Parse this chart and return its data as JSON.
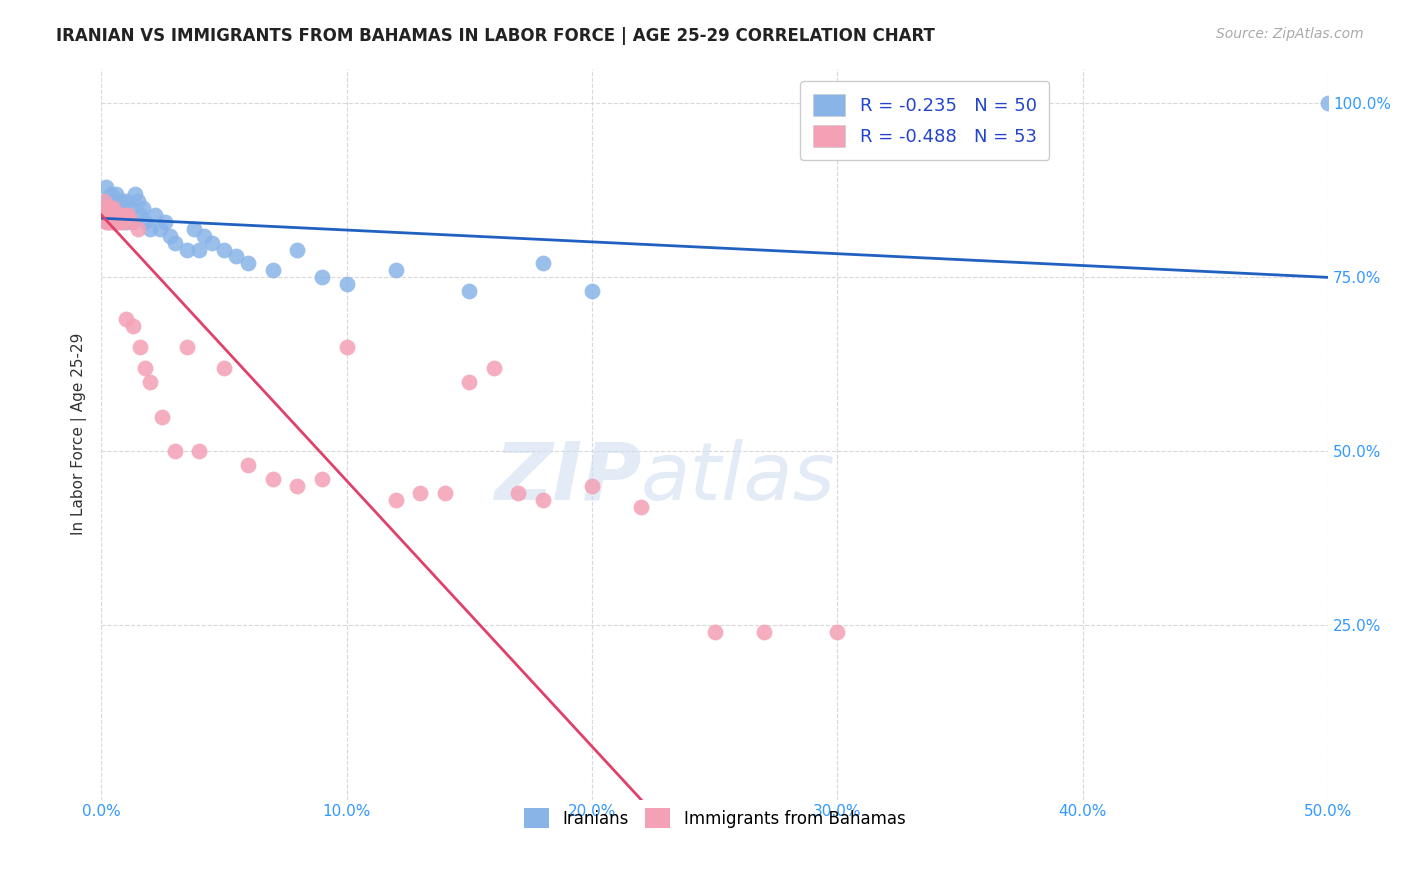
{
  "title": "IRANIAN VS IMMIGRANTS FROM BAHAMAS IN LABOR FORCE | AGE 25-29 CORRELATION CHART",
  "source": "Source: ZipAtlas.com",
  "ylabel": "In Labor Force | Age 25-29",
  "xlim": [
    0.0,
    0.5
  ],
  "ylim": [
    0.0,
    1.05
  ],
  "xtick_labels": [
    "0.0%",
    "",
    "",
    "",
    "",
    "",
    "",
    "",
    "",
    "",
    "10.0%",
    "",
    "",
    "",
    "",
    "",
    "",
    "",
    "",
    "",
    "20.0%",
    "",
    "",
    "",
    "",
    "",
    "",
    "",
    "",
    "",
    "30.0%",
    "",
    "",
    "",
    "",
    "",
    "",
    "",
    "",
    "",
    "40.0%",
    "",
    "",
    "",
    "",
    "",
    "",
    "",
    "",
    "",
    "50.0%"
  ],
  "xtick_values": [
    0.0,
    0.01,
    0.02,
    0.03,
    0.04,
    0.05,
    0.06,
    0.07,
    0.08,
    0.09,
    0.1,
    0.11,
    0.12,
    0.13,
    0.14,
    0.15,
    0.16,
    0.17,
    0.18,
    0.19,
    0.2,
    0.21,
    0.22,
    0.23,
    0.24,
    0.25,
    0.26,
    0.27,
    0.28,
    0.29,
    0.3,
    0.31,
    0.32,
    0.33,
    0.34,
    0.35,
    0.36,
    0.37,
    0.38,
    0.39,
    0.4,
    0.41,
    0.42,
    0.43,
    0.44,
    0.45,
    0.46,
    0.47,
    0.48,
    0.49,
    0.5
  ],
  "ytick_labels": [
    "25.0%",
    "50.0%",
    "75.0%",
    "100.0%"
  ],
  "ytick_values": [
    0.25,
    0.5,
    0.75,
    1.0
  ],
  "blue_color": "#89b4e8",
  "pink_color": "#f4a0b5",
  "blue_line_color": "#2060c0",
  "pink_line_color": "#e0406a",
  "blue_R": -0.235,
  "blue_N": 50,
  "pink_R": -0.488,
  "pink_N": 53,
  "blue_scatter_x": [
    0.001,
    0.002,
    0.002,
    0.003,
    0.003,
    0.003,
    0.004,
    0.004,
    0.005,
    0.005,
    0.006,
    0.006,
    0.007,
    0.007,
    0.008,
    0.008,
    0.009,
    0.01,
    0.01,
    0.011,
    0.012,
    0.013,
    0.014,
    0.015,
    0.016,
    0.017,
    0.018,
    0.02,
    0.022,
    0.024,
    0.026,
    0.028,
    0.03,
    0.035,
    0.038,
    0.04,
    0.042,
    0.045,
    0.05,
    0.055,
    0.06,
    0.07,
    0.08,
    0.09,
    0.1,
    0.12,
    0.15,
    0.18,
    0.2,
    0.5
  ],
  "blue_scatter_y": [
    0.84,
    0.86,
    0.88,
    0.83,
    0.84,
    0.86,
    0.85,
    0.87,
    0.84,
    0.86,
    0.85,
    0.87,
    0.84,
    0.86,
    0.84,
    0.86,
    0.85,
    0.83,
    0.86,
    0.84,
    0.85,
    0.83,
    0.87,
    0.86,
    0.84,
    0.85,
    0.83,
    0.82,
    0.84,
    0.82,
    0.83,
    0.81,
    0.8,
    0.79,
    0.82,
    0.79,
    0.81,
    0.8,
    0.79,
    0.78,
    0.77,
    0.76,
    0.79,
    0.75,
    0.74,
    0.76,
    0.73,
    0.77,
    0.73,
    1.0
  ],
  "pink_scatter_x": [
    0.001,
    0.001,
    0.001,
    0.002,
    0.002,
    0.002,
    0.003,
    0.003,
    0.003,
    0.004,
    0.004,
    0.004,
    0.005,
    0.005,
    0.005,
    0.006,
    0.006,
    0.007,
    0.007,
    0.008,
    0.008,
    0.009,
    0.01,
    0.01,
    0.011,
    0.012,
    0.013,
    0.015,
    0.016,
    0.018,
    0.02,
    0.025,
    0.03,
    0.035,
    0.04,
    0.05,
    0.06,
    0.07,
    0.08,
    0.09,
    0.1,
    0.12,
    0.13,
    0.14,
    0.15,
    0.16,
    0.17,
    0.18,
    0.2,
    0.22,
    0.25,
    0.27,
    0.3
  ],
  "pink_scatter_y": [
    0.84,
    0.85,
    0.86,
    0.83,
    0.84,
    0.85,
    0.83,
    0.84,
    0.85,
    0.83,
    0.84,
    0.85,
    0.83,
    0.84,
    0.85,
    0.83,
    0.84,
    0.83,
    0.84,
    0.83,
    0.84,
    0.83,
    0.84,
    0.69,
    0.84,
    0.83,
    0.68,
    0.82,
    0.65,
    0.62,
    0.6,
    0.55,
    0.5,
    0.65,
    0.5,
    0.62,
    0.48,
    0.46,
    0.45,
    0.46,
    0.65,
    0.43,
    0.44,
    0.44,
    0.6,
    0.62,
    0.44,
    0.43,
    0.45,
    0.42,
    0.24,
    0.24,
    0.24
  ],
  "watermark_zip": "ZIP",
  "watermark_atlas": "atlas",
  "background_color": "#ffffff",
  "grid_color": "#d8d8d8"
}
